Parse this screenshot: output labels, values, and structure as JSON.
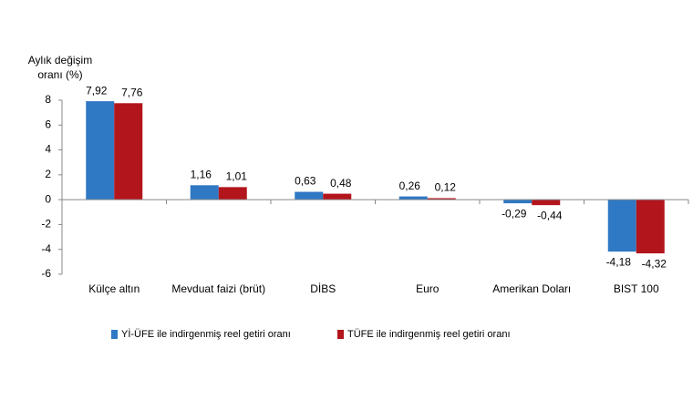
{
  "chart_data": {
    "type": "bar",
    "ylabel": [
      "Aylık değişim",
      "oranı (%)"
    ],
    "categories": [
      "Külçe altın",
      "Mevduat faizi (brüt)",
      "DİBS",
      "Euro",
      "Amerikan Doları",
      "BIST 100"
    ],
    "series": [
      {
        "name": "Yİ-ÜFE ile indirgenmiş reel getiri oranı",
        "color": "#2f78c4",
        "values": [
          7.92,
          1.16,
          0.63,
          0.26,
          -0.29,
          -4.18
        ],
        "value_labels": [
          "7,92",
          "1,16",
          "0,63",
          "0,26",
          "-0,29",
          "-4,18"
        ]
      },
      {
        "name": "TÜFE ile indirgenmiş reel getiri oranı",
        "color": "#b3151c",
        "values": [
          7.76,
          1.01,
          0.48,
          0.12,
          -0.44,
          -4.32
        ],
        "value_labels": [
          "7,76",
          "1,01",
          "0,48",
          "0,12",
          "-0,44",
          "-4,32"
        ]
      }
    ],
    "ylim": [
      -6,
      8
    ],
    "yticks": [
      -6,
      -4,
      -2,
      0,
      2,
      4,
      6,
      8
    ],
    "grid": false,
    "legend": "bottom"
  }
}
